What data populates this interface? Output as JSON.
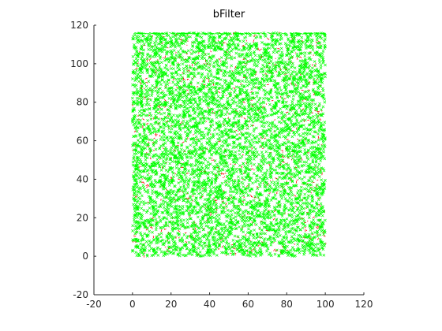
{
  "chart_data": {
    "type": "scatter",
    "title": "bFilter",
    "xlabel": "",
    "ylabel": "",
    "xlim": [
      -20,
      120
    ],
    "ylim": [
      -20,
      120
    ],
    "xticks": [
      "-20",
      "0",
      "20",
      "40",
      "60",
      "80",
      "100",
      "120"
    ],
    "yticks": [
      "-20",
      "0",
      "20",
      "40",
      "60",
      "80",
      "100",
      "120"
    ],
    "grid": false,
    "legend": "none",
    "data_extent": {
      "x": [
        0,
        100
      ],
      "y": [
        0,
        116
      ]
    },
    "series": [
      {
        "color": "#00ff00",
        "marker": "x",
        "description": "dense uniform field of points",
        "count": 6000
      },
      {
        "color": "#ff0000",
        "marker": "segment",
        "description": "short red segments scattered over field",
        "count": 900
      }
    ]
  }
}
